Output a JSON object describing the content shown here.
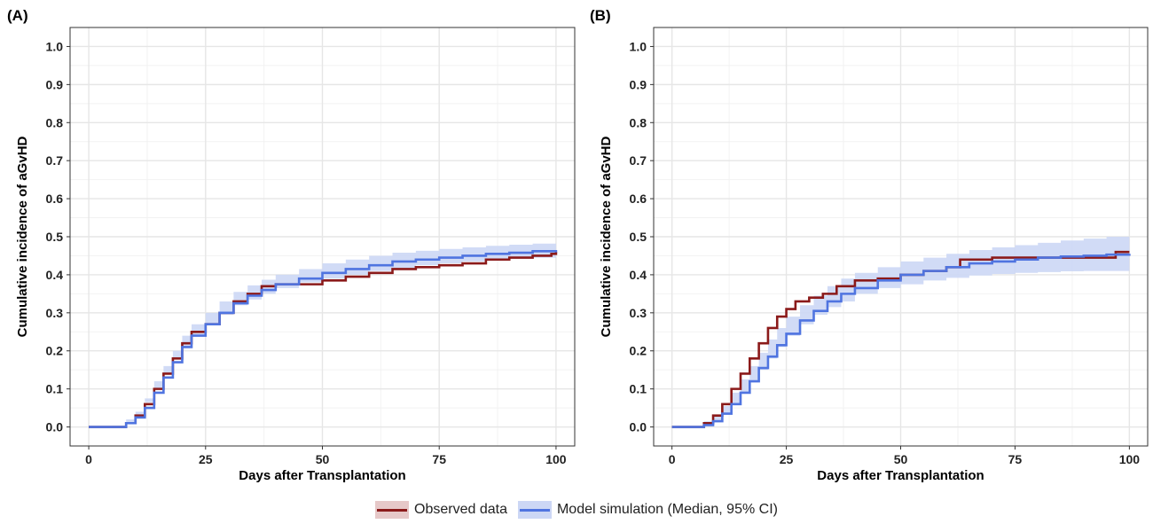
{
  "colors": {
    "observed": "#8b1a1a",
    "observed_fill": "#e6c8c8",
    "model": "#4f74e0",
    "ci_band": "#ccd7f5",
    "grid_major": "#e6e6e6",
    "grid_minor": "#f2f2f2",
    "axis": "#333333"
  },
  "legend": {
    "observed_label": "Observed data",
    "model_label": "Model simulation (Median, 95% CI)",
    "placement": "bottom-center"
  },
  "chart_data": [
    {
      "panel": "(A)",
      "type": "line",
      "step": true,
      "xlabel": "Days after Transplantation",
      "ylabel": "Cumulative incidence of aGvHD",
      "xlim": [
        -4,
        104
      ],
      "ylim": [
        -0.05,
        1.05
      ],
      "xticks": [
        0,
        25,
        50,
        75,
        100
      ],
      "yticks": [
        0.0,
        0.1,
        0.2,
        0.3,
        0.4,
        0.5,
        0.6,
        0.7,
        0.8,
        0.9,
        1.0
      ],
      "grid": true,
      "series": [
        {
          "name": "Observed data",
          "x": [
            0,
            5,
            8,
            10,
            12,
            14,
            16,
            18,
            20,
            22,
            25,
            28,
            31,
            34,
            37,
            40,
            45,
            50,
            55,
            60,
            65,
            70,
            75,
            80,
            85,
            90,
            95,
            99,
            100
          ],
          "y": [
            0,
            0,
            0.01,
            0.03,
            0.06,
            0.1,
            0.14,
            0.18,
            0.22,
            0.25,
            0.27,
            0.3,
            0.33,
            0.35,
            0.37,
            0.375,
            0.375,
            0.385,
            0.395,
            0.405,
            0.415,
            0.42,
            0.425,
            0.43,
            0.44,
            0.445,
            0.45,
            0.455,
            0.46
          ]
        },
        {
          "name": "Model simulation (Median, 95% CI)",
          "x": [
            0,
            5,
            8,
            10,
            12,
            14,
            16,
            18,
            20,
            22,
            25,
            28,
            31,
            34,
            37,
            40,
            45,
            50,
            55,
            60,
            65,
            70,
            75,
            80,
            85,
            90,
            95,
            100
          ],
          "y": [
            0,
            0,
            0.01,
            0.025,
            0.05,
            0.09,
            0.13,
            0.17,
            0.21,
            0.24,
            0.27,
            0.3,
            0.325,
            0.345,
            0.36,
            0.375,
            0.39,
            0.405,
            0.415,
            0.425,
            0.435,
            0.44,
            0.445,
            0.45,
            0.455,
            0.458,
            0.462,
            0.465
          ],
          "lower": [
            0,
            0,
            0.003,
            0.012,
            0.03,
            0.065,
            0.1,
            0.14,
            0.18,
            0.21,
            0.24,
            0.27,
            0.295,
            0.32,
            0.335,
            0.35,
            0.365,
            0.38,
            0.39,
            0.4,
            0.41,
            0.418,
            0.425,
            0.43,
            0.435,
            0.438,
            0.442,
            0.445
          ],
          "upper": [
            0,
            0,
            0.02,
            0.04,
            0.075,
            0.12,
            0.16,
            0.2,
            0.24,
            0.27,
            0.3,
            0.33,
            0.355,
            0.372,
            0.387,
            0.4,
            0.415,
            0.43,
            0.44,
            0.45,
            0.458,
            0.463,
            0.468,
            0.472,
            0.476,
            0.479,
            0.482,
            0.485
          ]
        }
      ]
    },
    {
      "panel": "(B)",
      "type": "line",
      "step": true,
      "xlabel": "Days after Transplantation",
      "ylabel": "Cumulative incidence of aGvHD",
      "xlim": [
        -4,
        104
      ],
      "ylim": [
        -0.05,
        1.05
      ],
      "xticks": [
        0,
        25,
        50,
        75,
        100
      ],
      "yticks": [
        0.0,
        0.1,
        0.2,
        0.3,
        0.4,
        0.5,
        0.6,
        0.7,
        0.8,
        0.9,
        1.0
      ],
      "grid": true,
      "series": [
        {
          "name": "Observed data",
          "x": [
            0,
            5,
            7,
            9,
            11,
            13,
            15,
            17,
            19,
            21,
            23,
            25,
            27,
            30,
            33,
            36,
            40,
            45,
            50,
            55,
            60,
            63,
            70,
            75,
            80,
            90,
            96,
            97,
            100
          ],
          "y": [
            0,
            0,
            0.01,
            0.03,
            0.06,
            0.1,
            0.14,
            0.18,
            0.22,
            0.26,
            0.29,
            0.31,
            0.33,
            0.34,
            0.35,
            0.37,
            0.385,
            0.39,
            0.4,
            0.41,
            0.42,
            0.44,
            0.445,
            0.445,
            0.445,
            0.445,
            0.445,
            0.46,
            0.46
          ]
        },
        {
          "name": "Model simulation (Median, 95% CI)",
          "x": [
            0,
            5,
            7,
            9,
            11,
            13,
            15,
            17,
            19,
            21,
            23,
            25,
            28,
            31,
            34,
            37,
            40,
            45,
            50,
            55,
            60,
            65,
            70,
            75,
            80,
            85,
            90,
            95,
            100
          ],
          "y": [
            0,
            0,
            0.005,
            0.015,
            0.035,
            0.06,
            0.09,
            0.12,
            0.155,
            0.185,
            0.215,
            0.245,
            0.28,
            0.305,
            0.33,
            0.35,
            0.365,
            0.385,
            0.4,
            0.41,
            0.42,
            0.43,
            0.435,
            0.44,
            0.445,
            0.448,
            0.45,
            0.453,
            0.455
          ],
          "lower": [
            0,
            0,
            0.0,
            0.005,
            0.015,
            0.035,
            0.06,
            0.09,
            0.12,
            0.15,
            0.18,
            0.21,
            0.24,
            0.27,
            0.295,
            0.315,
            0.33,
            0.35,
            0.365,
            0.375,
            0.385,
            0.392,
            0.398,
            0.402,
            0.405,
            0.407,
            0.409,
            0.41,
            0.41
          ],
          "upper": [
            0,
            0,
            0.015,
            0.03,
            0.055,
            0.09,
            0.125,
            0.16,
            0.195,
            0.23,
            0.26,
            0.29,
            0.32,
            0.345,
            0.37,
            0.39,
            0.405,
            0.42,
            0.435,
            0.445,
            0.455,
            0.465,
            0.472,
            0.478,
            0.484,
            0.49,
            0.495,
            0.5,
            0.505
          ]
        }
      ]
    }
  ]
}
